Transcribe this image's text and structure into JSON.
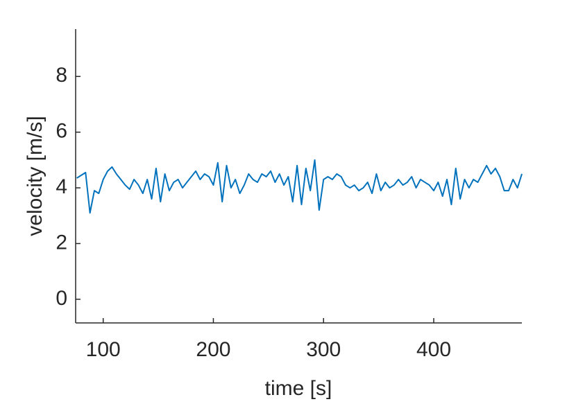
{
  "chart_data": {
    "type": "line",
    "x_label": "time [s]",
    "y_label": "velocity [m/s]",
    "x": [
      76,
      80,
      84,
      88,
      92,
      96,
      100,
      104,
      108,
      112,
      116,
      120,
      124,
      128,
      132,
      136,
      140,
      144,
      148,
      152,
      156,
      160,
      164,
      168,
      172,
      176,
      180,
      184,
      188,
      192,
      196,
      200,
      204,
      208,
      212,
      216,
      220,
      224,
      228,
      232,
      236,
      240,
      244,
      248,
      252,
      256,
      260,
      264,
      268,
      272,
      276,
      280,
      284,
      288,
      292,
      296,
      300,
      304,
      308,
      312,
      316,
      320,
      324,
      328,
      332,
      336,
      340,
      344,
      348,
      352,
      356,
      360,
      364,
      368,
      372,
      376,
      380,
      384,
      388,
      392,
      396,
      400,
      404,
      408,
      412,
      416,
      420,
      424,
      428,
      432,
      436,
      440,
      444,
      448,
      452,
      456,
      460,
      464,
      468,
      472,
      476,
      480
    ],
    "series": [
      {
        "name": "velocity",
        "color": "#0072bd",
        "values": [
          4.35,
          4.45,
          4.55,
          3.1,
          3.9,
          3.8,
          4.3,
          4.6,
          4.75,
          4.5,
          4.3,
          4.1,
          3.95,
          4.3,
          4.1,
          3.8,
          4.3,
          3.6,
          4.7,
          3.5,
          4.5,
          3.9,
          4.2,
          4.3,
          4.0,
          4.2,
          4.4,
          4.6,
          4.3,
          4.5,
          4.4,
          4.1,
          4.9,
          3.5,
          4.8,
          4.0,
          4.3,
          3.8,
          4.1,
          4.5,
          4.3,
          4.2,
          4.5,
          4.4,
          4.6,
          4.2,
          4.5,
          4.1,
          4.4,
          3.5,
          4.8,
          3.4,
          4.7,
          3.9,
          5.0,
          3.2,
          4.3,
          4.4,
          4.3,
          4.5,
          4.4,
          4.1,
          4.0,
          4.1,
          3.9,
          4.0,
          4.2,
          3.8,
          4.5,
          3.9,
          4.2,
          4.0,
          4.1,
          4.3,
          4.1,
          4.2,
          4.4,
          4.0,
          4.3,
          4.2,
          4.1,
          3.9,
          4.2,
          3.7,
          4.3,
          3.4,
          4.7,
          3.6,
          4.3,
          4.0,
          4.3,
          4.2,
          4.5,
          4.8,
          4.5,
          4.7,
          4.4,
          3.9,
          3.9,
          4.3,
          4.0,
          4.5
        ]
      }
    ],
    "xlim": [
      75,
      480
    ],
    "ylim": [
      -0.85,
      9.7
    ],
    "xticks": [
      100,
      200,
      300,
      400
    ],
    "yticks": [
      0,
      2,
      4,
      6,
      8
    ]
  }
}
